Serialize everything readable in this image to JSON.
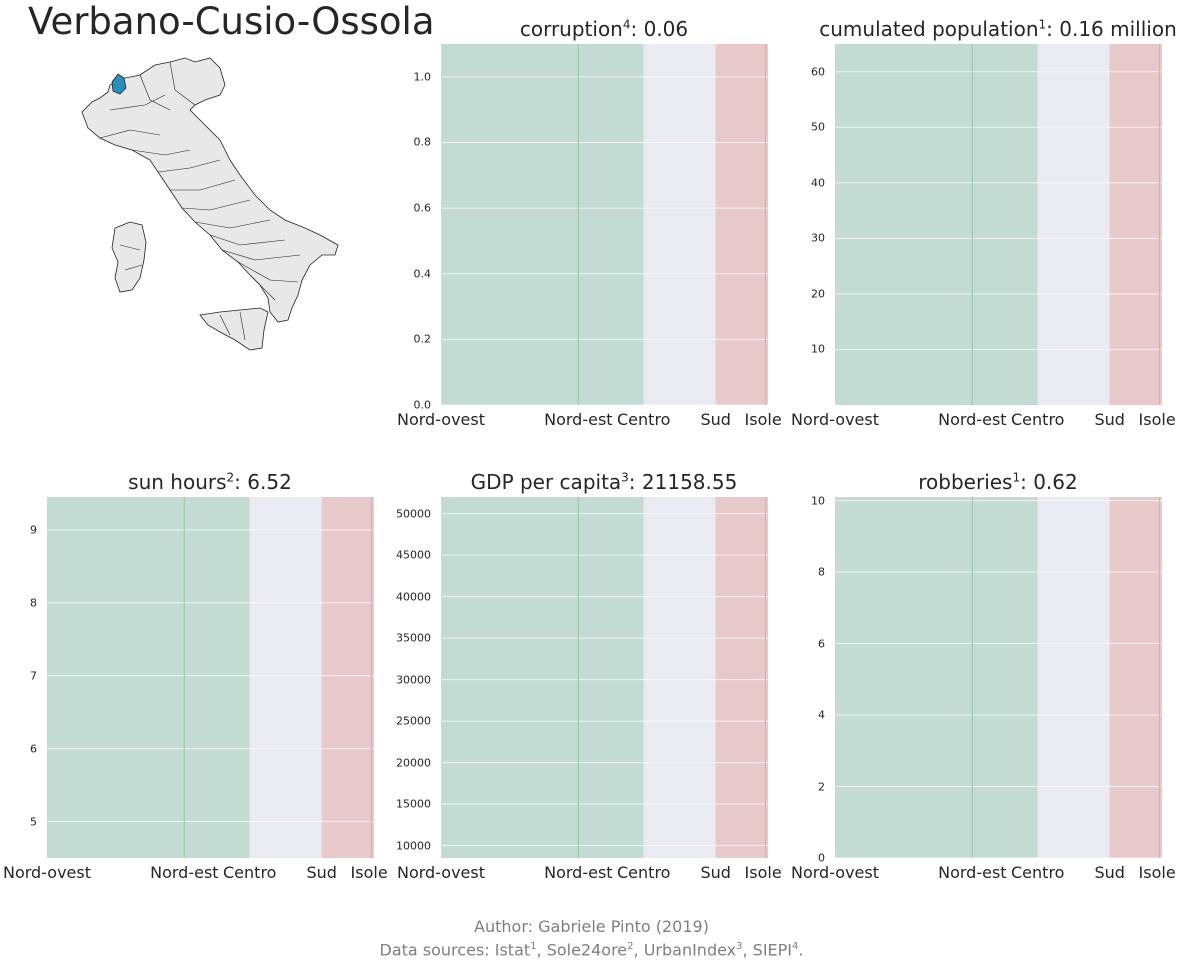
{
  "main_title": "Verbano-Cusio-Ossola",
  "map": {
    "highlight_color": "#2b8cbe",
    "region_color": "#e8e8e8",
    "border_color": "#222222"
  },
  "colors": {
    "plot_bg": "#eaeaf2",
    "nord_ovest": "#c3dbd2",
    "nord_est": "#c3dbd2",
    "centro": "#eaeaf2",
    "sud": "#e7c9cc",
    "isole": "#e7c9cc",
    "green_line": "#9ccca6",
    "red_line": "#f0a8a0",
    "grid": "#ffffff"
  },
  "footer": {
    "line1": "Author: Gabriele Pinto (2019)",
    "line2_prefix": "Data sources: ",
    "sources": [
      {
        "name": "Istat",
        "sup": "1"
      },
      {
        "name": "Sole24ore",
        "sup": "2"
      },
      {
        "name": "UrbanIndex",
        "sup": "3"
      },
      {
        "name": "SIEPI",
        "sup": "4"
      }
    ]
  },
  "chart_data": [
    {
      "type": "bar",
      "title": "corruption",
      "title_sup": "4",
      "title_value": ": 0.06",
      "categories": [
        "Nord-ovest",
        "Nord-est",
        "Centro",
        "Sud",
        "Isole"
      ],
      "ylim": [
        0,
        1.1
      ],
      "yticks": [
        "0.0",
        "0.2",
        "0.4",
        "0.6",
        "0.8",
        "1.0"
      ],
      "ytick_values": [
        0,
        0.2,
        0.4,
        0.6,
        0.8,
        1.0
      ],
      "grid": true
    },
    {
      "type": "bar",
      "title": "cumulated population",
      "title_sup": "1",
      "title_value": ": 0.16 million",
      "categories": [
        "Nord-ovest",
        "Nord-est",
        "Centro",
        "Sud",
        "Isole"
      ],
      "ylim": [
        0,
        65
      ],
      "yticks": [
        "10",
        "20",
        "30",
        "40",
        "50",
        "60"
      ],
      "ytick_values": [
        10,
        20,
        30,
        40,
        50,
        60
      ],
      "grid": true
    },
    {
      "type": "bar",
      "title": "sun hours",
      "title_sup": "2",
      "title_value": ": 6.52",
      "categories": [
        "Nord-ovest",
        "Nord-est",
        "Centro",
        "Sud",
        "Isole"
      ],
      "ylim": [
        4.5,
        9.45
      ],
      "yticks": [
        "5",
        "6",
        "7",
        "8",
        "9"
      ],
      "ytick_values": [
        5,
        6,
        7,
        8,
        9
      ],
      "grid": true
    },
    {
      "type": "bar",
      "title": "GDP per capita",
      "title_sup": "3",
      "title_value": ": 21158.55",
      "categories": [
        "Nord-ovest",
        "Nord-est",
        "Centro",
        "Sud",
        "Isole"
      ],
      "ylim": [
        8500,
        52000
      ],
      "yticks": [
        "10000",
        "15000",
        "20000",
        "25000",
        "30000",
        "35000",
        "40000",
        "45000",
        "50000"
      ],
      "ytick_values": [
        10000,
        15000,
        20000,
        25000,
        30000,
        35000,
        40000,
        45000,
        50000
      ],
      "grid": true
    },
    {
      "type": "bar",
      "title": "robberies",
      "title_sup": "1",
      "title_value": ": 0.62",
      "categories": [
        "Nord-ovest",
        "Nord-est",
        "Centro",
        "Sud",
        "Isole"
      ],
      "ylim": [
        0,
        10.1
      ],
      "yticks": [
        "0",
        "2",
        "4",
        "6",
        "8",
        "10"
      ],
      "ytick_values": [
        0,
        2,
        4,
        6,
        8,
        10
      ],
      "grid": true
    }
  ]
}
